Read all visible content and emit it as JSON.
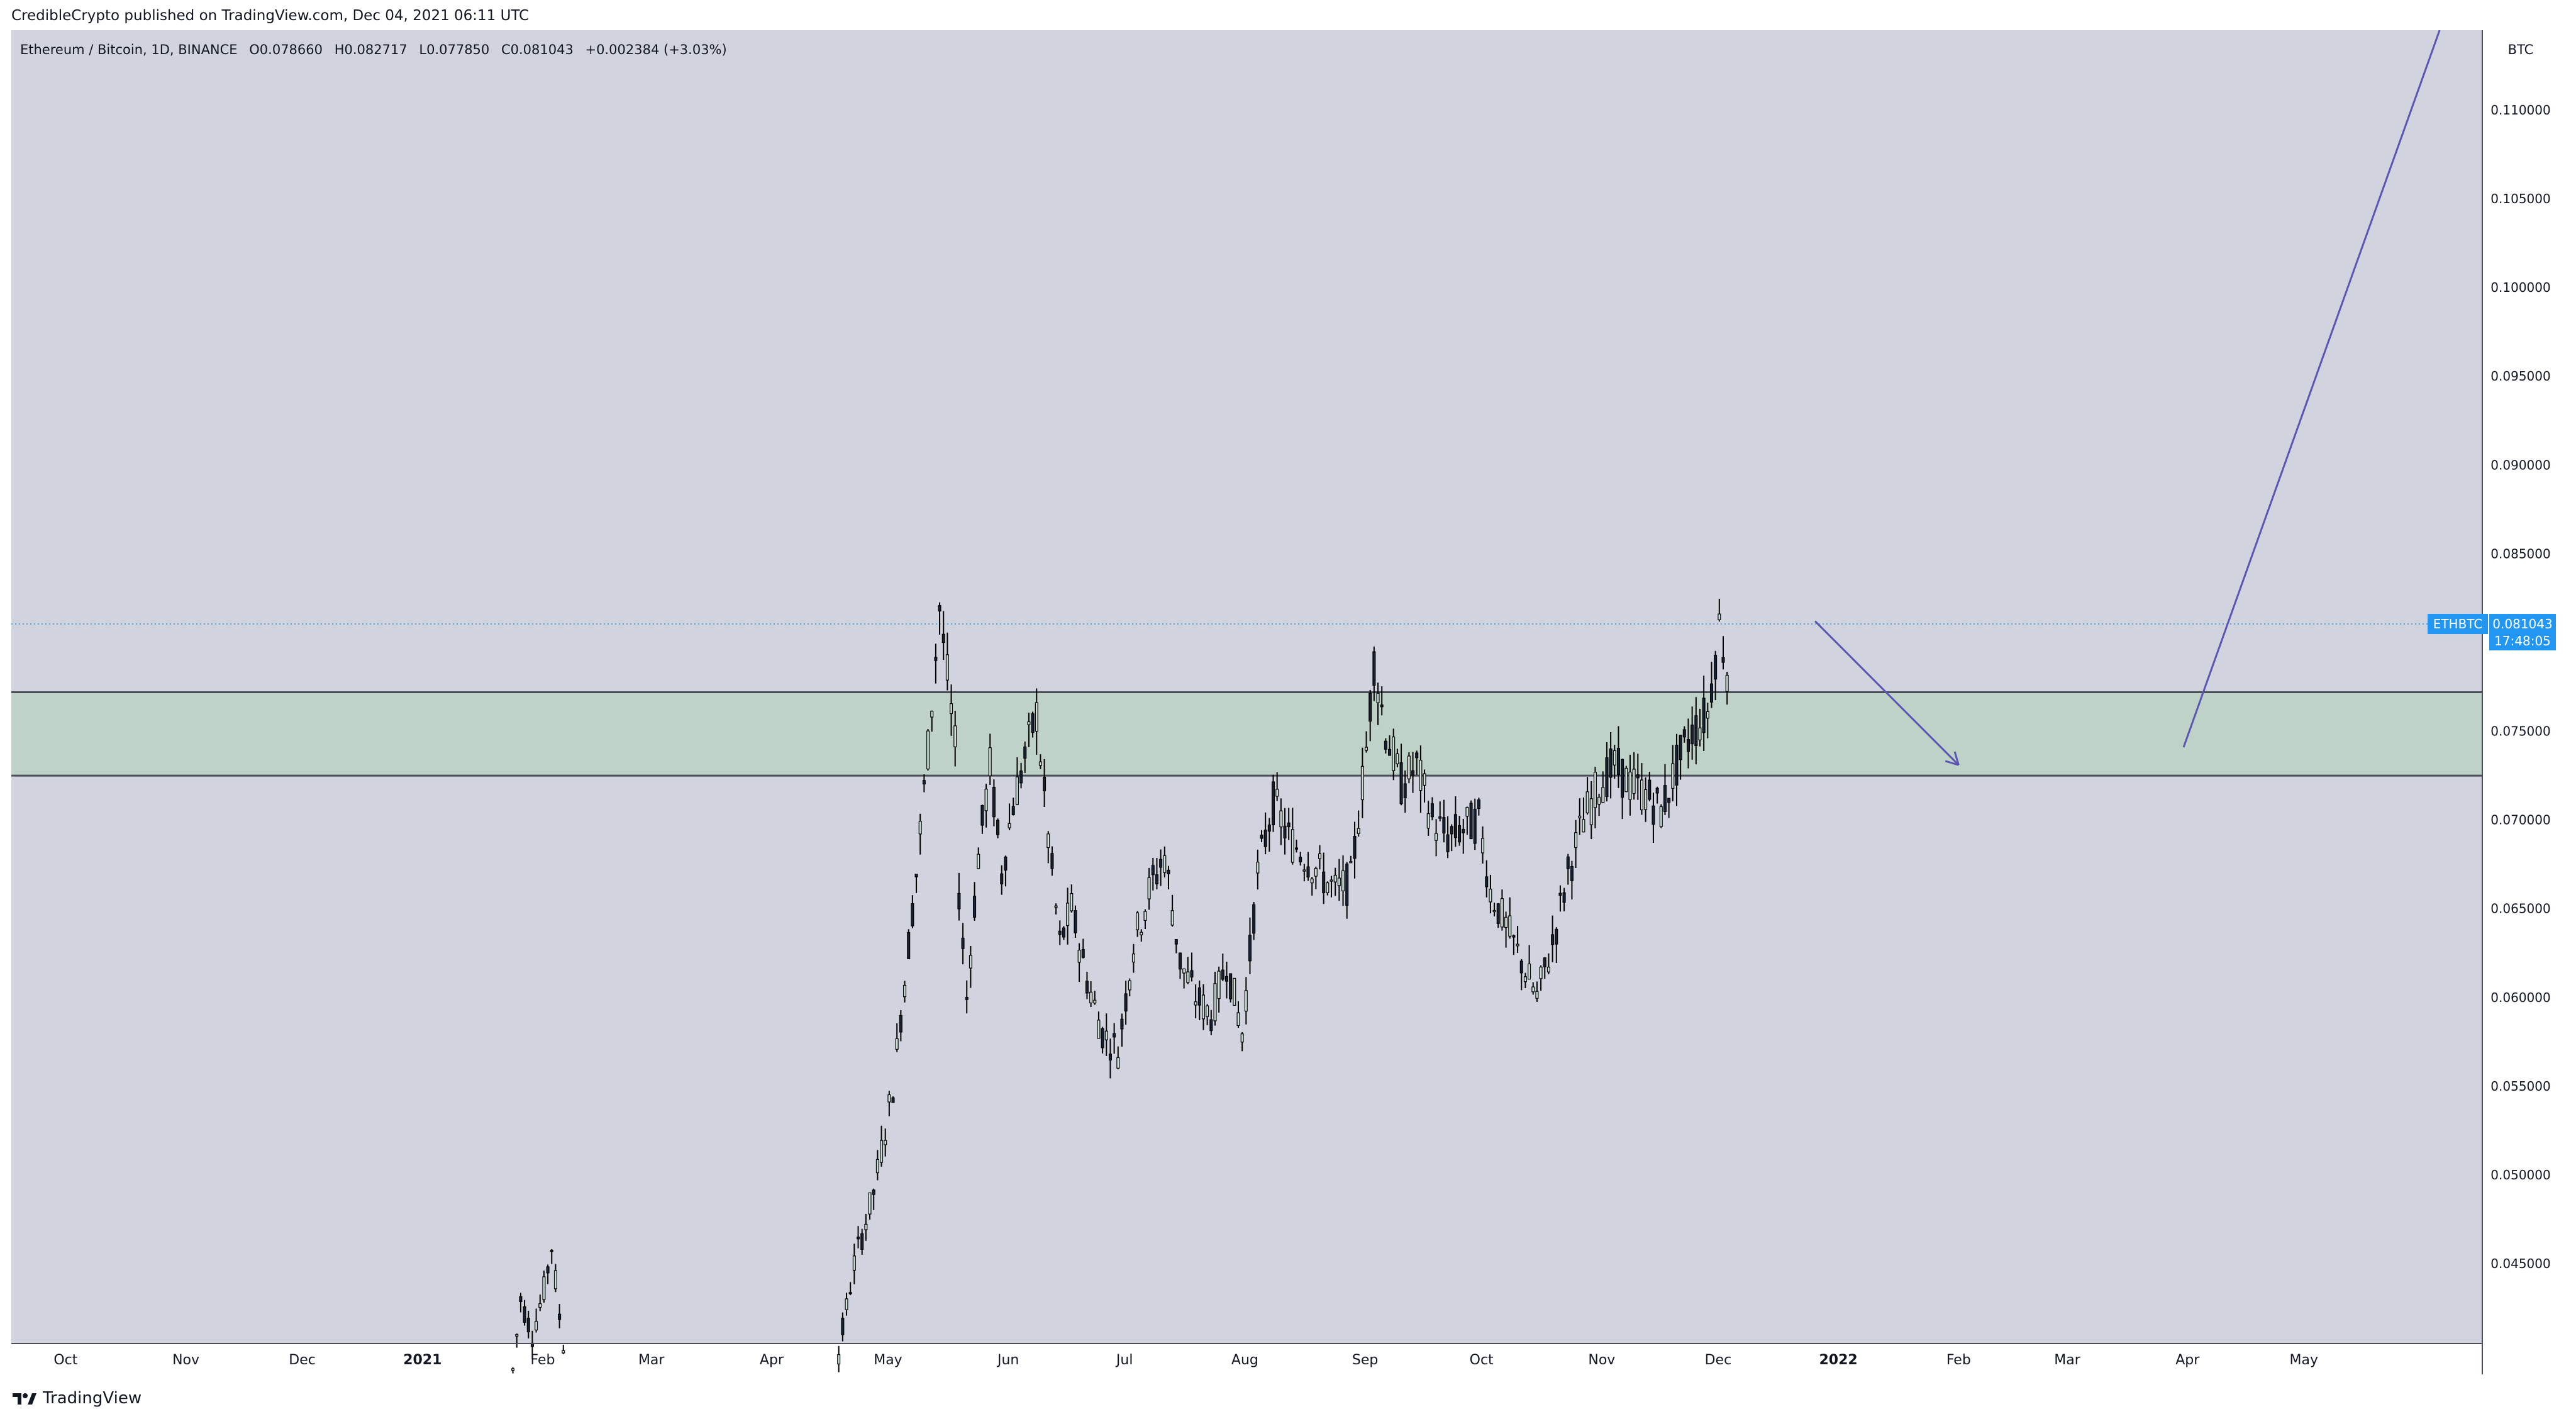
{
  "header": {
    "published": "CredibleCrypto published on TradingView.com, Dec 04, 2021 06:11 UTC"
  },
  "legend": {
    "symbol": "Ethereum / Bitcoin, 1D, BINANCE",
    "o_label": "O",
    "o": "0.078660",
    "h_label": "H",
    "h": "0.082717",
    "l_label": "L",
    "l": "0.077850",
    "c_label": "C",
    "c": "0.081043",
    "change": "+0.002384 (+3.03%)"
  },
  "price_scale": {
    "currency": "BTC",
    "ticks": [
      "0.110000",
      "0.105000",
      "0.100000",
      "0.095000",
      "0.090000",
      "0.085000",
      "0.075000",
      "0.070000",
      "0.065000",
      "0.060000",
      "0.055000",
      "0.050000",
      "0.045000"
    ]
  },
  "last_price": {
    "ticker": "ETHBTC",
    "price": "0.081043",
    "countdown": "17:48:05"
  },
  "footer": {
    "brand": "TradingView"
  },
  "colors": {
    "plot_bg": "#d1d4de",
    "zone_fill": "#bed2c8",
    "zone_line": "#4a4e59",
    "candle_up": "#cfe2dc",
    "candle_down": "#172334",
    "wick": "#000000",
    "drawing": "#5b55b3",
    "last_price": "#2196f3"
  },
  "chart_data": {
    "type": "candlestick",
    "symbol": "ETHBTC",
    "interval": "1D",
    "exchange": "BINANCE",
    "ylim": [
      0.0405,
      0.1145
    ],
    "x_ticks": [
      "Oct",
      "Nov",
      "Dec",
      "2021",
      "Feb",
      "Mar",
      "Apr",
      "May",
      "Jun",
      "Jul",
      "Aug",
      "Sep",
      "Oct",
      "Nov",
      "Dec",
      "2022",
      "Feb",
      "Mar",
      "Apr",
      "May"
    ],
    "x_tick_dates": [
      "2020-10-01",
      "2020-11-01",
      "2020-12-01",
      "2021-01-01",
      "2021-02-01",
      "2021-03-01",
      "2021-04-01",
      "2021-05-01",
      "2021-06-01",
      "2021-07-01",
      "2021-08-01",
      "2021-09-01",
      "2021-10-01",
      "2021-11-01",
      "2021-12-01",
      "2022-01-01",
      "2022-02-01",
      "2022-03-01",
      "2022-04-01",
      "2022-05-01"
    ],
    "x_range": [
      "2020-09-17",
      "2022-06-16"
    ],
    "y_ticks": [
      0.045,
      0.05,
      0.055,
      0.06,
      0.065,
      0.07,
      0.075,
      0.085,
      0.09,
      0.095,
      0.1,
      0.105,
      0.11
    ],
    "close_path": [
      [
        "2021-01-24",
        0.039
      ],
      [
        "2021-01-26",
        0.043
      ],
      [
        "2021-01-29",
        0.041
      ],
      [
        "2021-02-01",
        0.0435
      ],
      [
        "2021-02-03",
        0.046
      ],
      [
        "2021-02-05",
        0.042
      ],
      [
        "2021-02-07",
        0.039
      ],
      [
        "2021-04-18",
        0.04
      ],
      [
        "2021-04-22",
        0.045
      ],
      [
        "2021-04-27",
        0.049
      ],
      [
        "2021-05-02",
        0.055
      ],
      [
        "2021-05-05",
        0.061
      ],
      [
        "2021-05-08",
        0.067
      ],
      [
        "2021-05-11",
        0.074
      ],
      [
        "2021-05-14",
        0.082
      ],
      [
        "2021-05-16",
        0.078
      ],
      [
        "2021-05-18",
        0.074
      ],
      [
        "2021-05-19",
        0.066
      ],
      [
        "2021-05-21",
        0.06
      ],
      [
        "2021-05-24",
        0.068
      ],
      [
        "2021-05-27",
        0.073
      ],
      [
        "2021-05-30",
        0.067
      ],
      [
        "2021-06-02",
        0.071
      ],
      [
        "2021-06-05",
        0.0735
      ],
      [
        "2021-06-08",
        0.076
      ],
      [
        "2021-06-11",
        0.069
      ],
      [
        "2021-06-14",
        0.063
      ],
      [
        "2021-06-17",
        0.065
      ],
      [
        "2021-06-21",
        0.061
      ],
      [
        "2021-06-25",
        0.058
      ],
      [
        "2021-06-29",
        0.057
      ],
      [
        "2021-07-03",
        0.063
      ],
      [
        "2021-07-07",
        0.066
      ],
      [
        "2021-07-11",
        0.068
      ],
      [
        "2021-07-15",
        0.062
      ],
      [
        "2021-07-19",
        0.06
      ],
      [
        "2021-07-23",
        0.059
      ],
      [
        "2021-07-27",
        0.062
      ],
      [
        "2021-07-31",
        0.058
      ],
      [
        "2021-08-04",
        0.067
      ],
      [
        "2021-08-08",
        0.071
      ],
      [
        "2021-08-12",
        0.069
      ],
      [
        "2021-08-16",
        0.068
      ],
      [
        "2021-08-20",
        0.067
      ],
      [
        "2021-08-24",
        0.066
      ],
      [
        "2021-08-28",
        0.0665
      ],
      [
        "2021-09-01",
        0.074
      ],
      [
        "2021-09-03",
        0.079
      ],
      [
        "2021-09-06",
        0.075
      ],
      [
        "2021-09-10",
        0.072
      ],
      [
        "2021-09-14",
        0.073
      ],
      [
        "2021-09-18",
        0.07
      ],
      [
        "2021-09-22",
        0.069
      ],
      [
        "2021-09-26",
        0.0695
      ],
      [
        "2021-09-30",
        0.07
      ],
      [
        "2021-10-03",
        0.066
      ],
      [
        "2021-10-07",
        0.064
      ],
      [
        "2021-10-11",
        0.062
      ],
      [
        "2021-10-15",
        0.06
      ],
      [
        "2021-10-19",
        0.063
      ],
      [
        "2021-10-23",
        0.067
      ],
      [
        "2021-10-27",
        0.07
      ],
      [
        "2021-10-31",
        0.072
      ],
      [
        "2021-11-04",
        0.073
      ],
      [
        "2021-11-08",
        0.072
      ],
      [
        "2021-11-12",
        0.0715
      ],
      [
        "2021-11-16",
        0.0705
      ],
      [
        "2021-11-20",
        0.073
      ],
      [
        "2021-11-24",
        0.075
      ],
      [
        "2021-11-28",
        0.076
      ],
      [
        "2021-12-01",
        0.081
      ],
      [
        "2021-12-03",
        0.0786
      ],
      [
        "2021-12-04",
        0.081043
      ]
    ],
    "support_zone": {
      "low": 0.0725,
      "high": 0.0772
    },
    "last_price_line": 0.081043,
    "annotations": [
      {
        "type": "arrow",
        "from": [
          "2021-12-26",
          0.0812
        ],
        "to": [
          "2022-02-01",
          0.0731
        ]
      },
      {
        "type": "trend_line",
        "from": [
          "2022-03-31",
          0.0741
        ],
        "to": [
          "2022-06-05",
          0.1145
        ]
      }
    ]
  }
}
